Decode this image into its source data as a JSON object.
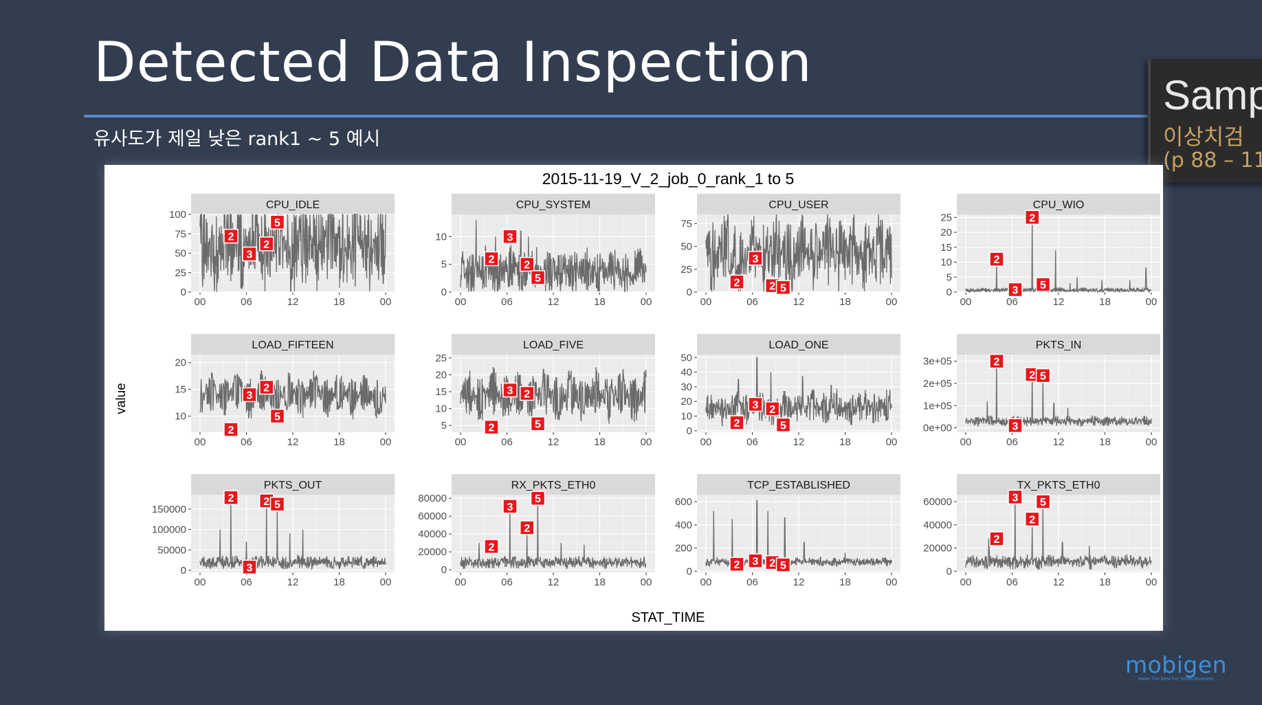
{
  "slide": {
    "title": "Detected Data Inspection",
    "subtitle": "유사도가 제일 낮은 rank1 ~ 5 예시",
    "side_box": {
      "line1": "Samp",
      "line2": "이상치검",
      "line3": "(p 88 – 11"
    },
    "logo": {
      "name": "mobigen",
      "tagline": "Make The Best For Smart Business"
    }
  },
  "chart_data": {
    "type": "line",
    "title": "2015-11-19_V_2_job_0_rank_1 to 5",
    "xlabel": "STAT_TIME",
    "ylabel": "value",
    "x_ticks": [
      "00",
      "06",
      "12",
      "18",
      "00"
    ],
    "x_range": [
      0,
      24
    ],
    "colors": {
      "panel_bg": "#ebebeb",
      "strip_bg": "#d9d9d9",
      "line": "#6b6b6b",
      "marker": "#e8171c",
      "grid": "#ffffff"
    },
    "facets": [
      {
        "name": "CPU_IDLE",
        "ylim": [
          0,
          100
        ],
        "yticks": [
          0,
          25,
          50,
          75,
          100
        ],
        "yticklabels": [
          "0",
          "25",
          "50",
          "75",
          "100"
        ],
        "base": 60,
        "amp": 40,
        "noise": 30,
        "seed": 1,
        "spikes": [],
        "markers": [
          {
            "rank": "2",
            "x": 4,
            "y": 72
          },
          {
            "rank": "3",
            "x": 6.4,
            "y": 49
          },
          {
            "rank": "2",
            "x": 8.6,
            "y": 62
          },
          {
            "rank": "5",
            "x": 10,
            "y": 90
          }
        ]
      },
      {
        "name": "CPU_SYSTEM",
        "ylim": [
          0,
          14
        ],
        "yticks": [
          0,
          5,
          10
        ],
        "yticklabels": [
          "0",
          "5",
          "10"
        ],
        "base": 3.8,
        "amp": 2.8,
        "noise": 2,
        "seed": 2,
        "spikes": [
          [
            2,
            13
          ],
          [
            4.5,
            10
          ],
          [
            7.8,
            11
          ],
          [
            8.8,
            10
          ]
        ],
        "markers": [
          {
            "rank": "2",
            "x": 4,
            "y": 6
          },
          {
            "rank": "3",
            "x": 6.4,
            "y": 10
          },
          {
            "rank": "2",
            "x": 8.6,
            "y": 5
          },
          {
            "rank": "5",
            "x": 10,
            "y": 2.6
          }
        ]
      },
      {
        "name": "CPU_USER",
        "ylim": [
          0,
          85
        ],
        "yticks": [
          0,
          25,
          50,
          75
        ],
        "yticklabels": [
          "0",
          "25",
          "50",
          "75"
        ],
        "base": 42,
        "amp": 28,
        "noise": 20,
        "seed": 3,
        "spikes": [],
        "markers": [
          {
            "rank": "2",
            "x": 4,
            "y": 11
          },
          {
            "rank": "3",
            "x": 6.4,
            "y": 37
          },
          {
            "rank": "2",
            "x": 8.6,
            "y": 7
          },
          {
            "rank": "5",
            "x": 10,
            "y": 5
          }
        ]
      },
      {
        "name": "CPU_WIO",
        "ylim": [
          0,
          26
        ],
        "yticks": [
          0,
          5,
          10,
          15,
          20,
          25
        ],
        "yticklabels": [
          "0",
          "5",
          "10",
          "15",
          "20",
          "25"
        ],
        "base": 0.6,
        "amp": 0.4,
        "noise": 0.6,
        "seed": 4,
        "spikes": [
          [
            4,
            9
          ],
          [
            8.6,
            25
          ],
          [
            11.6,
            14
          ],
          [
            14.4,
            5
          ],
          [
            17.6,
            4
          ],
          [
            21.2,
            4
          ],
          [
            23.3,
            8
          ],
          [
            13.5,
            3
          ]
        ],
        "markers": [
          {
            "rank": "2",
            "x": 4,
            "y": 11
          },
          {
            "rank": "3",
            "x": 6.4,
            "y": 0.8
          },
          {
            "rank": "2",
            "x": 8.6,
            "y": 25
          },
          {
            "rank": "5",
            "x": 10,
            "y": 2.5
          }
        ]
      },
      {
        "name": "LOAD_FIFTEEN",
        "ylim": [
          7,
          21.5
        ],
        "yticks": [
          10,
          15,
          20
        ],
        "yticklabels": [
          "10",
          "15",
          "20"
        ],
        "base": 14,
        "amp": 3.5,
        "noise": 1.2,
        "seed": 5,
        "spikes": [],
        "markers": [
          {
            "rank": "2",
            "x": 4,
            "y": 7.5
          },
          {
            "rank": "3",
            "x": 6.4,
            "y": 14
          },
          {
            "rank": "2",
            "x": 8.6,
            "y": 15.4
          },
          {
            "rank": "5",
            "x": 10,
            "y": 10
          }
        ]
      },
      {
        "name": "LOAD_FIVE",
        "ylim": [
          3,
          26
        ],
        "yticks": [
          5,
          10,
          15,
          20,
          25
        ],
        "yticklabels": [
          "5",
          "10",
          "15",
          "20",
          "25"
        ],
        "base": 14,
        "amp": 6,
        "noise": 2.5,
        "seed": 6,
        "spikes": [],
        "markers": [
          {
            "rank": "2",
            "x": 4,
            "y": 4.5
          },
          {
            "rank": "3",
            "x": 6.4,
            "y": 15.5
          },
          {
            "rank": "2",
            "x": 8.6,
            "y": 14.5
          },
          {
            "rank": "5",
            "x": 10,
            "y": 5.5
          }
        ]
      },
      {
        "name": "LOAD_ONE",
        "ylim": [
          -1,
          52
        ],
        "yticks": [
          0,
          10,
          20,
          30,
          40,
          50
        ],
        "yticklabels": [
          "0",
          "10",
          "20",
          "30",
          "40",
          "50"
        ],
        "base": 16,
        "amp": 7,
        "noise": 6,
        "seed": 7,
        "spikes": [
          [
            6.6,
            50
          ],
          [
            8.4,
            40
          ],
          [
            4.2,
            35
          ],
          [
            12.5,
            37
          ],
          [
            16.2,
            31
          ]
        ],
        "markers": [
          {
            "rank": "2",
            "x": 4,
            "y": 5.5
          },
          {
            "rank": "3",
            "x": 6.4,
            "y": 18
          },
          {
            "rank": "2",
            "x": 8.6,
            "y": 15
          },
          {
            "rank": "5",
            "x": 10,
            "y": 4
          }
        ]
      },
      {
        "name": "PKTS_IN",
        "ylim": [
          -20000,
          330000
        ],
        "yticks": [
          0,
          100000,
          200000,
          300000
        ],
        "yticklabels": [
          "0e+00",
          "1e+05",
          "2e+05",
          "3e+05"
        ],
        "base": 30000,
        "amp": 12000,
        "noise": 14000,
        "seed": 8,
        "spikes": [
          [
            4,
            310000
          ],
          [
            8.6,
            240000
          ],
          [
            10,
            220000
          ],
          [
            2.8,
            120000
          ],
          [
            11.4,
            110000
          ],
          [
            13.2,
            90000
          ]
        ],
        "markers": [
          {
            "rank": "2",
            "x": 4,
            "y": 300000
          },
          {
            "rank": "3",
            "x": 6.4,
            "y": 10000
          },
          {
            "rank": "2",
            "x": 8.6,
            "y": 240000
          },
          {
            "rank": "5",
            "x": 10,
            "y": 235000
          }
        ]
      },
      {
        "name": "PKTS_OUT",
        "ylim": [
          -5000,
          185000
        ],
        "yticks": [
          0,
          50000,
          100000,
          150000
        ],
        "yticklabels": [
          "0",
          "50000",
          "100000",
          "150000"
        ],
        "base": 20000,
        "amp": 7000,
        "noise": 12000,
        "seed": 9,
        "spikes": [
          [
            4,
            175000
          ],
          [
            8.6,
            160000
          ],
          [
            10,
            150000
          ],
          [
            2.6,
            100000
          ],
          [
            11.6,
            90000
          ],
          [
            13.3,
            100000
          ],
          [
            6,
            70000
          ]
        ],
        "markers": [
          {
            "rank": "2",
            "x": 4,
            "y": 178000
          },
          {
            "rank": "3",
            "x": 6.4,
            "y": 8000
          },
          {
            "rank": "2",
            "x": 8.6,
            "y": 170000
          },
          {
            "rank": "5",
            "x": 10,
            "y": 162000
          }
        ]
      },
      {
        "name": "RX_PKTS_ETH0",
        "ylim": [
          -3000,
          84000
        ],
        "yticks": [
          0,
          20000,
          40000,
          60000,
          80000
        ],
        "yticklabels": [
          "0",
          "20000",
          "40000",
          "60000",
          "80000"
        ],
        "base": 8000,
        "amp": 3000,
        "noise": 5000,
        "seed": 10,
        "spikes": [
          [
            6.4,
            70000
          ],
          [
            10,
            75000
          ],
          [
            8.6,
            40000
          ],
          [
            2.4,
            30000
          ],
          [
            13,
            30000
          ],
          [
            16,
            28000
          ]
        ],
        "markers": [
          {
            "rank": "2",
            "x": 4,
            "y": 26000
          },
          {
            "rank": "3",
            "x": 6.4,
            "y": 71000
          },
          {
            "rank": "2",
            "x": 8.6,
            "y": 47000
          },
          {
            "rank": "5",
            "x": 10,
            "y": 80000
          }
        ]
      },
      {
        "name": "TCP_ESTABLISHED",
        "ylim": [
          -10,
          660
        ],
        "yticks": [
          0,
          200,
          400,
          600
        ],
        "yticklabels": [
          "0",
          "200",
          "400",
          "600"
        ],
        "base": 80,
        "amp": 20,
        "noise": 25,
        "seed": 11,
        "spikes": [
          [
            1,
            520
          ],
          [
            3.4,
            450
          ],
          [
            6.6,
            610
          ],
          [
            8,
            520
          ],
          [
            10.2,
            460
          ],
          [
            18,
            160
          ],
          [
            12.7,
            250
          ]
        ],
        "markers": [
          {
            "rank": "2",
            "x": 4,
            "y": 60
          },
          {
            "rank": "3",
            "x": 6.4,
            "y": 90
          },
          {
            "rank": "2",
            "x": 8.6,
            "y": 75
          },
          {
            "rank": "5",
            "x": 10,
            "y": 55
          }
        ]
      },
      {
        "name": "TX_PKTS_ETH0",
        "ylim": [
          -1000,
          66000
        ],
        "yticks": [
          0,
          20000,
          40000,
          60000
        ],
        "yticklabels": [
          "0",
          "20000",
          "40000",
          "60000"
        ],
        "base": 8000,
        "amp": 3000,
        "noise": 4000,
        "seed": 12,
        "spikes": [
          [
            6.4,
            62000
          ],
          [
            10,
            55000
          ],
          [
            8.6,
            38000
          ],
          [
            3,
            28000
          ],
          [
            12.5,
            25000
          ],
          [
            16,
            22000
          ]
        ],
        "markers": [
          {
            "rank": "2",
            "x": 4,
            "y": 28000
          },
          {
            "rank": "3",
            "x": 6.4,
            "y": 64000
          },
          {
            "rank": "2",
            "x": 8.6,
            "y": 45000
          },
          {
            "rank": "5",
            "x": 10,
            "y": 60000
          }
        ]
      }
    ]
  }
}
